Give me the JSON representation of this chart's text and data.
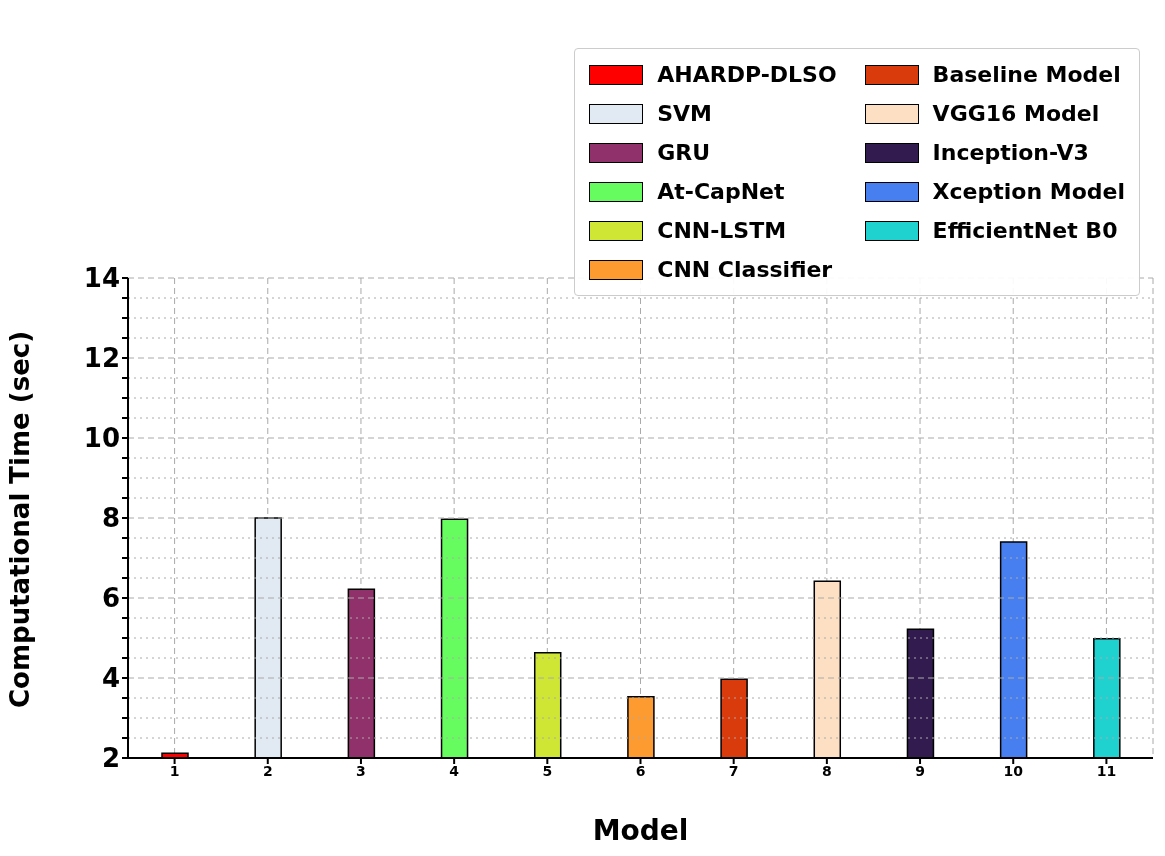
{
  "chart_data": {
    "type": "bar",
    "xlabel": "Model",
    "ylabel": "Computational Time (sec)",
    "categories": [
      "1",
      "2",
      "3",
      "4",
      "5",
      "6",
      "7",
      "8",
      "9",
      "10",
      "11"
    ],
    "series": [
      {
        "name": "AHARDP-DLSO",
        "color": "#ff0000",
        "values": [
          2.12,
          null,
          null,
          null,
          null,
          null,
          null,
          null,
          null,
          null,
          null
        ]
      },
      {
        "name": "SVM",
        "color": "#e1e9f2",
        "values": [
          null,
          8.0,
          null,
          null,
          null,
          null,
          null,
          null,
          null,
          null,
          null
        ]
      },
      {
        "name": "GRU",
        "color": "#90316b",
        "values": [
          null,
          null,
          6.22,
          null,
          null,
          null,
          null,
          null,
          null,
          null,
          null
        ]
      },
      {
        "name": "At-CapNet",
        "color": "#66fb5e",
        "values": [
          null,
          null,
          null,
          7.97,
          null,
          null,
          null,
          null,
          null,
          null,
          null
        ]
      },
      {
        "name": "CNN-LSTM",
        "color": "#cfe634",
        "values": [
          null,
          null,
          null,
          null,
          4.63,
          null,
          null,
          null,
          null,
          null,
          null
        ]
      },
      {
        "name": "CNN Classifier",
        "color": "#fd9b30",
        "values": [
          null,
          null,
          null,
          null,
          null,
          3.53,
          null,
          null,
          null,
          null,
          null
        ]
      },
      {
        "name": "Baseline Model",
        "color": "#d93b0c",
        "values": [
          null,
          null,
          null,
          null,
          null,
          null,
          3.97,
          null,
          null,
          null,
          null
        ]
      },
      {
        "name": "VGG16 Model",
        "color": "#fde0c3",
        "values": [
          null,
          null,
          null,
          null,
          null,
          null,
          null,
          6.42,
          null,
          null,
          null
        ]
      },
      {
        "name": "Inception-V3",
        "color": "#321b4f",
        "values": [
          null,
          null,
          null,
          null,
          null,
          null,
          null,
          null,
          5.22,
          null,
          null
        ]
      },
      {
        "name": "Xception Model",
        "color": "#477ff0",
        "values": [
          null,
          null,
          null,
          null,
          null,
          null,
          null,
          null,
          null,
          7.4,
          null
        ]
      },
      {
        "name": "EfficientNet B0",
        "color": "#1fd1cf",
        "values": [
          null,
          null,
          null,
          null,
          null,
          null,
          null,
          null,
          null,
          null,
          4.98
        ]
      }
    ],
    "ylim": [
      2,
      14
    ],
    "yticks": [
      2,
      {
        "value": 2.5,
        "label": null
      },
      {
        "value": 3,
        "label": null
      },
      {
        "value": 3.5,
        "label": null
      },
      4,
      {
        "value": 4.5,
        "label": null
      },
      {
        "value": 5,
        "label": null
      },
      {
        "value": 5.5,
        "label": null
      },
      6,
      {
        "value": 6.5,
        "label": null
      },
      {
        "value": 7,
        "label": null
      },
      {
        "value": 7.5,
        "label": null
      },
      8,
      {
        "value": 8.5,
        "label": null
      },
      {
        "value": 9,
        "label": null
      },
      {
        "value": 9.5,
        "label": null
      },
      10,
      {
        "value": 10.5,
        "label": null
      },
      {
        "value": 11,
        "label": null
      },
      {
        "value": 11.5,
        "label": null
      },
      12,
      {
        "value": 12.5,
        "label": null
      },
      {
        "value": 13,
        "label": null
      },
      {
        "value": 13.5,
        "label": null
      },
      14
    ],
    "grid": true,
    "legend": "top right"
  }
}
